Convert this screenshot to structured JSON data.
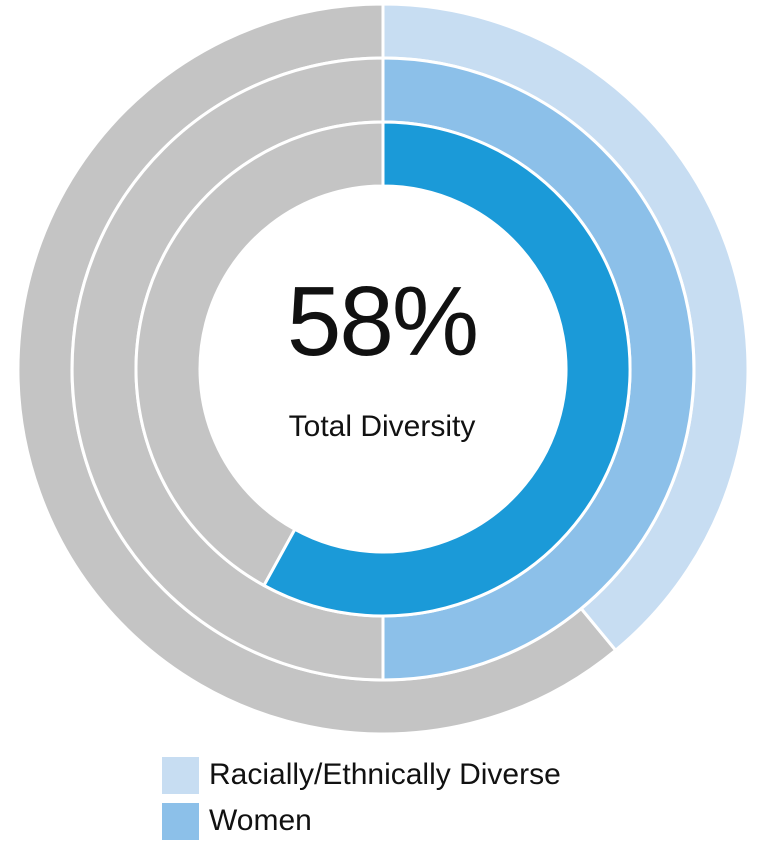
{
  "chart_data": {
    "type": "donut",
    "center": {
      "value": "58%",
      "label": "Total Diversity"
    },
    "rings": [
      {
        "ring": "outer",
        "legend": "Racially/Ethnically Diverse",
        "percent": 39,
        "color": "#c7ddf2",
        "rest_color": "#c4c4c4"
      },
      {
        "ring": "middle",
        "legend": "Women",
        "percent": 50,
        "color": "#8cc0e9",
        "rest_color": "#c4c4c4"
      },
      {
        "ring": "inner",
        "legend": "",
        "percent": 58,
        "color": "#1b9ad8",
        "rest_color": "#c4c4c4"
      }
    ],
    "legend_items": [
      {
        "label": "Racially/Ethnically Diverse",
        "color": "#c7ddf2"
      },
      {
        "label": "Women",
        "color": "#8cc0e9"
      }
    ]
  }
}
